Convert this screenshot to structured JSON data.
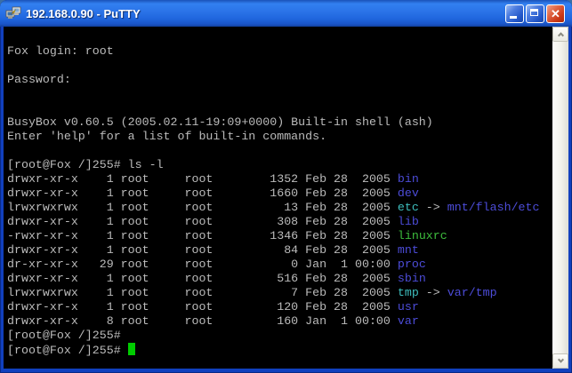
{
  "window": {
    "title": "192.168.0.90 - PuTTY",
    "controls": {
      "minimize_label": "Minimize",
      "maximize_label": "Maximize",
      "close_label": "Close",
      "close_glyph": "x"
    }
  },
  "colors": {
    "fg": "#BBBBBB",
    "dir": "#4C4CD8",
    "link": "#3DBDBD",
    "exec": "#3DBD3D",
    "cursor": "#00CC00",
    "terminal_bg": "#000000",
    "titlebar_blue": "#2B74E8",
    "close_red": "#CC3A18"
  },
  "terminal": {
    "lines": [
      {
        "segments": []
      },
      {
        "segments": [
          {
            "t": "Fox login: root",
            "c": "fg"
          }
        ]
      },
      {
        "segments": []
      },
      {
        "segments": [
          {
            "t": "Password:",
            "c": "fg"
          }
        ]
      },
      {
        "segments": []
      },
      {
        "segments": []
      },
      {
        "segments": [
          {
            "t": "BusyBox v0.60.5 (2005.02.11-19:09+0000) Built-in shell (ash)",
            "c": "fg"
          }
        ]
      },
      {
        "segments": [
          {
            "t": "Enter 'help' for a list of built-in commands.",
            "c": "fg"
          }
        ]
      },
      {
        "segments": []
      },
      {
        "segments": [
          {
            "t": "[root@Fox /]255# ls -l",
            "c": "fg"
          }
        ]
      },
      {
        "segments": [
          {
            "t": "drwxr-xr-x    1 root     root        1352 Feb 28  2005 ",
            "c": "fg"
          },
          {
            "t": "bin",
            "c": "dir"
          }
        ]
      },
      {
        "segments": [
          {
            "t": "drwxr-xr-x    1 root     root        1660 Feb 28  2005 ",
            "c": "fg"
          },
          {
            "t": "dev",
            "c": "dir"
          }
        ]
      },
      {
        "segments": [
          {
            "t": "lrwxrwxrwx    1 root     root          13 Feb 28  2005 ",
            "c": "fg"
          },
          {
            "t": "etc",
            "c": "link"
          },
          {
            "t": " -> ",
            "c": "fg"
          },
          {
            "t": "mnt/flash/etc",
            "c": "dir"
          }
        ]
      },
      {
        "segments": [
          {
            "t": "drwxr-xr-x    1 root     root         308 Feb 28  2005 ",
            "c": "fg"
          },
          {
            "t": "lib",
            "c": "dir"
          }
        ]
      },
      {
        "segments": [
          {
            "t": "-rwxr-xr-x    1 root     root        1346 Feb 28  2005 ",
            "c": "fg"
          },
          {
            "t": "linuxrc",
            "c": "exec"
          }
        ]
      },
      {
        "segments": [
          {
            "t": "drwxr-xr-x    1 root     root          84 Feb 28  2005 ",
            "c": "fg"
          },
          {
            "t": "mnt",
            "c": "dir"
          }
        ]
      },
      {
        "segments": [
          {
            "t": "dr-xr-xr-x   29 root     root           0 Jan  1 00:00 ",
            "c": "fg"
          },
          {
            "t": "proc",
            "c": "dir"
          }
        ]
      },
      {
        "segments": [
          {
            "t": "drwxr-xr-x    1 root     root         516 Feb 28  2005 ",
            "c": "fg"
          },
          {
            "t": "sbin",
            "c": "dir"
          }
        ]
      },
      {
        "segments": [
          {
            "t": "lrwxrwxrwx    1 root     root           7 Feb 28  2005 ",
            "c": "fg"
          },
          {
            "t": "tmp",
            "c": "link"
          },
          {
            "t": " -> ",
            "c": "fg"
          },
          {
            "t": "var/tmp",
            "c": "dir"
          }
        ]
      },
      {
        "segments": [
          {
            "t": "drwxr-xr-x    1 root     root         120 Feb 28  2005 ",
            "c": "fg"
          },
          {
            "t": "usr",
            "c": "dir"
          }
        ]
      },
      {
        "segments": [
          {
            "t": "drwxr-xr-x    8 root     root         160 Jan  1 00:00 ",
            "c": "fg"
          },
          {
            "t": "var",
            "c": "dir"
          }
        ]
      },
      {
        "segments": [
          {
            "t": "[root@Fox /]255#",
            "c": "fg"
          }
        ]
      },
      {
        "segments": [
          {
            "t": "[root@Fox /]255# ",
            "c": "fg"
          }
        ],
        "cursor": true
      }
    ]
  }
}
